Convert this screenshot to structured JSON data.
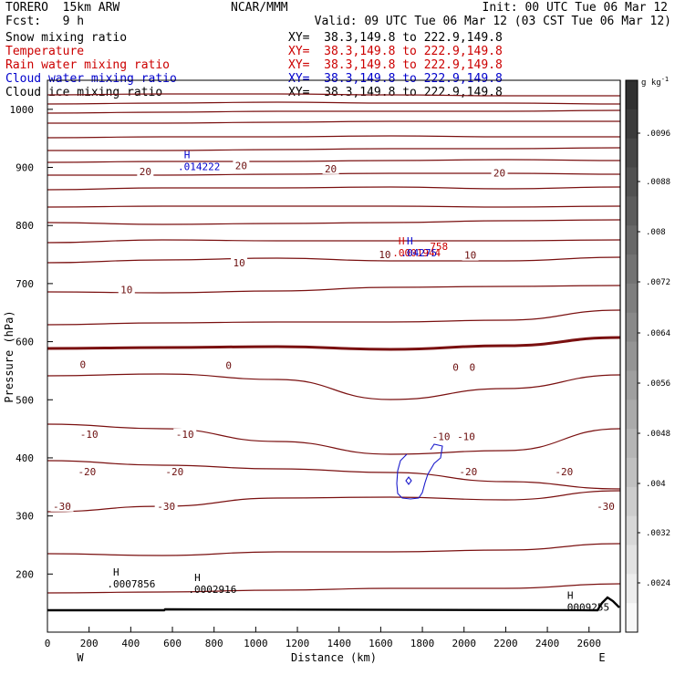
{
  "header": {
    "model": "TORERO  15km ARW",
    "center": "NCAR/MMM",
    "init": "Init: 00 UTC Tue 06 Mar 12",
    "fcst": "Fcst:   9 h",
    "valid": "Valid: 09 UTC Tue 06 Mar 12 (03 CST Tue 06 Mar 12)"
  },
  "legend": [
    {
      "name": "Snow mixing ratio",
      "xy": "XY=  38.3,149.8 to 222.9,149.8",
      "color": "#000000",
      "xy_color": "#000000"
    },
    {
      "name": "Temperature",
      "xy": "XY=  38.3,149.8 to 222.9,149.8",
      "color": "#cc0000",
      "xy_color": "#cc0000"
    },
    {
      "name": "Rain water mixing ratio",
      "xy": "XY=  38.3,149.8 to 222.9,149.8",
      "color": "#cc0000",
      "xy_color": "#cc0000"
    },
    {
      "name": "Cloud water mixing ratio",
      "xy": "XY=  38.3,149.8 to 222.9,149.8",
      "color": "#0000cc",
      "xy_color": "#0000cc"
    },
    {
      "name": "Cloud ice mixing ratio",
      "xy": "XY=  38.3,149.8 to 222.9,149.8",
      "color": "#000000",
      "xy_color": "#000000"
    }
  ],
  "chart_data": {
    "type": "contour cross-section",
    "xlabel": "Distance (km)",
    "ylabel": "Pressure (hPa)",
    "xlim": [
      0,
      2750
    ],
    "ylim": [
      1050,
      100
    ],
    "x_ticks": [
      0,
      200,
      400,
      600,
      800,
      1000,
      1200,
      1400,
      1600,
      1800,
      2000,
      2200,
      2400,
      2600
    ],
    "y_ticks": [
      200,
      300,
      400,
      500,
      600,
      700,
      800,
      900,
      1000
    ],
    "west_label": "W",
    "east_label": "E",
    "colorbar": {
      "unit": "g kg",
      "unit_sup": "-1",
      "ticks": [
        ".0096",
        ".0088",
        ".008",
        ".0072",
        ".0064",
        ".0056",
        ".0048",
        ".004",
        ".0032",
        ".0024"
      ]
    },
    "temperature_labels": [
      {
        "text": "-30",
        "x": 70,
        "p": 317
      },
      {
        "text": "-30",
        "x": 570,
        "p": 317
      },
      {
        "text": "-30",
        "x": 2680,
        "p": 317
      },
      {
        "text": "-20",
        "x": 190,
        "p": 376
      },
      {
        "text": "-20",
        "x": 610,
        "p": 376
      },
      {
        "text": "-20",
        "x": 2020,
        "p": 376
      },
      {
        "text": "-20",
        "x": 2480,
        "p": 376
      },
      {
        "text": "-10",
        "x": 200,
        "p": 441
      },
      {
        "text": "-10",
        "x": 660,
        "p": 441
      },
      {
        "text": "-10",
        "x": 1890,
        "p": 437
      },
      {
        "text": "-10",
        "x": 2010,
        "p": 437
      },
      {
        "text": "0",
        "x": 170,
        "p": 561
      },
      {
        "text": "0",
        "x": 870,
        "p": 559
      },
      {
        "text": "0",
        "x": 1960,
        "p": 556
      },
      {
        "text": "0",
        "x": 2040,
        "p": 556
      },
      {
        "text": "10",
        "x": 380,
        "p": 690
      },
      {
        "text": "10",
        "x": 920,
        "p": 736
      },
      {
        "text": "10",
        "x": 1620,
        "p": 750
      },
      {
        "text": "10",
        "x": 2030,
        "p": 749
      },
      {
        "text": "20",
        "x": 470,
        "p": 893
      },
      {
        "text": "20",
        "x": 930,
        "p": 903
      },
      {
        "text": "20",
        "x": 1360,
        "p": 898
      },
      {
        "text": "20",
        "x": 2170,
        "p": 891
      }
    ],
    "maxima": [
      {
        "mark": "H",
        "value": ".0009255",
        "x": 2510,
        "p": 157,
        "color": "#000000"
      },
      {
        "mark": "H",
        "value": ".0002916",
        "x": 720,
        "p": 188,
        "color": "#000000"
      },
      {
        "mark": "H",
        "value": ".0007856",
        "x": 330,
        "p": 197,
        "color": "#000000"
      },
      {
        "mark": "H",
        "value": ".0001944",
        "x": 1700,
        "p": 767,
        "color": "#cc0000"
      },
      {
        "mark": "H",
        "value": ".04275",
        "x": 1740,
        "p": 767,
        "color": "#0000cc"
      },
      {
        "mark": "",
        "value": "758",
        "x": 1880,
        "p": 778,
        "color": "#cc0000"
      },
      {
        "mark": "H",
        "value": ".014222",
        "x": 670,
        "p": 916,
        "color": "#0000cc"
      }
    ]
  }
}
